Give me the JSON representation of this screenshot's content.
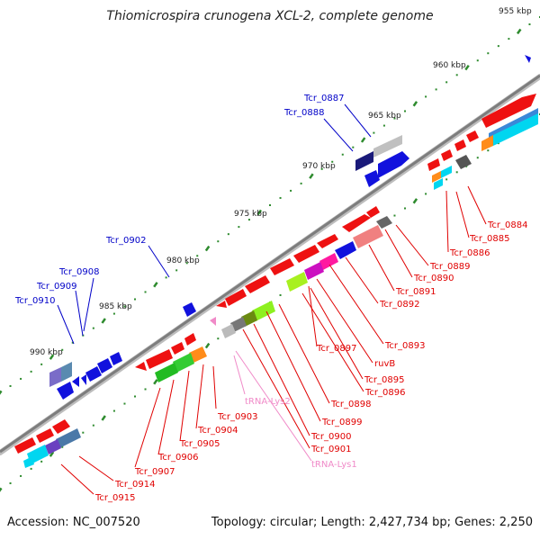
{
  "title": "Thiomicrospira crunogena XCL-2, complete genome",
  "accession_label": "Accession: NC_007520",
  "summary_label": "Topology: circular; Length: 2,427,734 bp; Genes: 2,250",
  "colors": {
    "axis": "#8a8a8a",
    "tick_dot": "#2e8b2e",
    "forward_gene": "#ee1111",
    "reverse_gene": "#1111dd",
    "forward_label": "#e00000",
    "reverse_label": "#0000c8",
    "rna_label": "#f08ac8"
  },
  "ruler": [
    "955 kbp",
    "960 kbp",
    "965 kbp",
    "970 kbp",
    "975 kbp",
    "980 kbp",
    "985 kbp",
    "990 kbp"
  ],
  "forward_labels": [
    "Tcr_0884",
    "Tcr_0885",
    "Tcr_0886",
    "Tcr_0889",
    "Tcr_0890",
    "Tcr_0891",
    "Tcr_0892",
    "Tcr_0893",
    "Tcr_0897",
    "ruvB",
    "Tcr_0895",
    "Tcr_0896",
    "Tcr_0898",
    "Tcr_0899",
    "Tcr_0900",
    "Tcr_0901",
    "Tcr_0903",
    "Tcr_0904",
    "Tcr_0905",
    "Tcr_0906",
    "Tcr_0907",
    "Tcr_0914",
    "Tcr_0915"
  ],
  "reverse_labels": [
    "Tcr_0887",
    "Tcr_0888",
    "Tcr_0902",
    "Tcr_0908",
    "Tcr_0909",
    "Tcr_0910"
  ],
  "rna_labels": [
    "tRNA-Lys2",
    "tRNA-Lys1"
  ]
}
